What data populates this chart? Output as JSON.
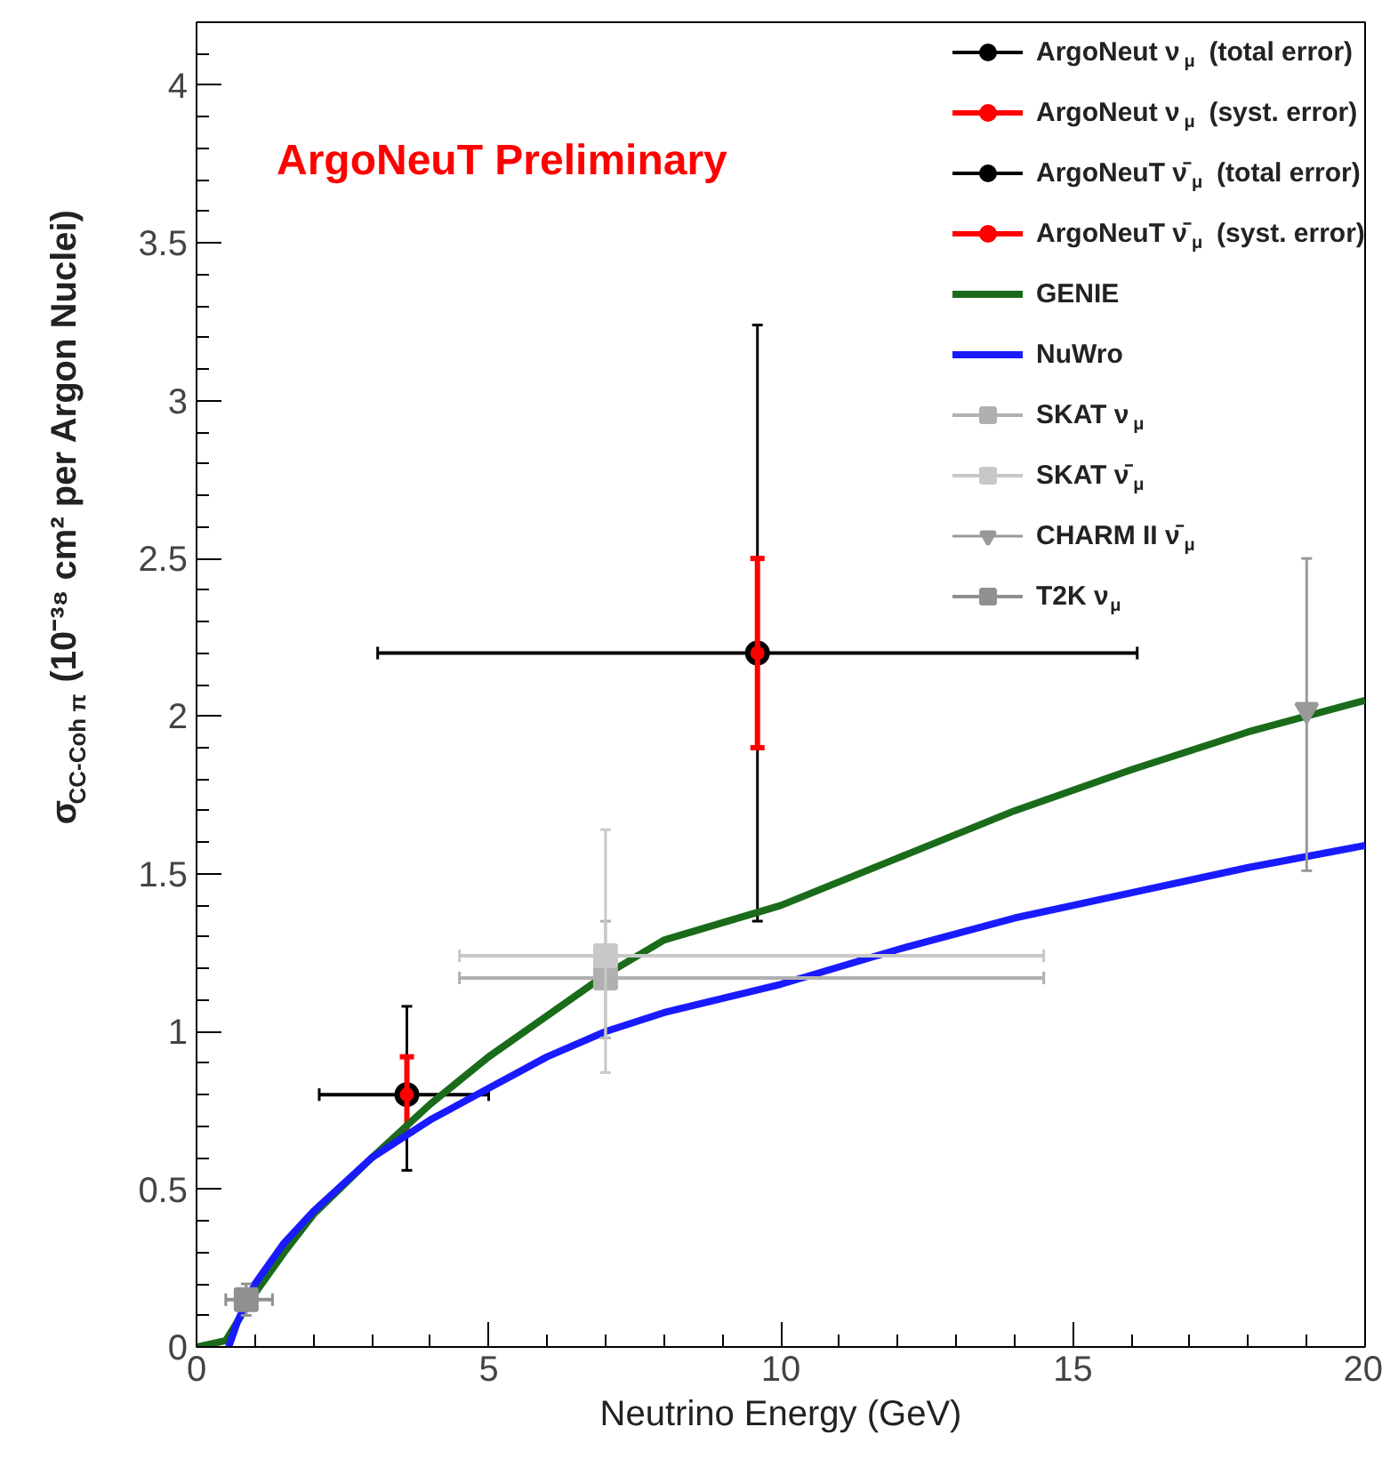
{
  "chart_data": {
    "type": "scatter",
    "xlabel": "Neutrino Energy (GeV)",
    "ylabel": "σ$_{CC-Coh π}$ (10⁻³⁸ cm² per Argon Nuclei)",
    "xlim": [
      0,
      20
    ],
    "ylim": [
      0,
      4.2
    ],
    "xticks": [
      0,
      5,
      10,
      15,
      20
    ],
    "yticks": [
      0,
      0.5,
      1,
      1.5,
      2,
      2.5,
      3,
      3.5,
      4
    ],
    "grid": false,
    "legend": "top right",
    "annotations": [
      "ArgoNeuT Preliminary"
    ],
    "series": [
      {
        "name": "ArgoNeut ν$_{μ}$ (total error)",
        "marker": "circle",
        "color": "#000000",
        "x": [
          9.6
        ],
        "values": [
          2.2
        ],
        "errors": [
          [
            1.35,
            3.24
          ]
        ],
        "xerrors": [
          [
            3.1,
            16.1
          ]
        ]
      },
      {
        "name": "ArgoNeut ν$_{μ}$ (syst. error)",
        "marker": "circle",
        "color": "#ff0000",
        "x": [
          9.6
        ],
        "values": [
          2.2
        ],
        "errors": [
          [
            1.9,
            2.5
          ]
        ]
      },
      {
        "name": "ArgoNeuT ν̄$_{μ}$ (total error)",
        "marker": "circle",
        "color": "#000000",
        "x": [
          3.6
        ],
        "values": [
          0.8
        ],
        "errors": [
          [
            0.56,
            1.08
          ]
        ],
        "xerrors": [
          [
            2.1,
            5.0
          ]
        ]
      },
      {
        "name": "ArgoNeuT ν̄$_{μ}$ (syst. error)",
        "marker": "circle",
        "color": "#ff0000",
        "x": [
          3.6
        ],
        "values": [
          0.8
        ],
        "errors": [
          [
            0.68,
            0.92
          ]
        ]
      },
      {
        "name": "GENIE",
        "type": "line",
        "color": "#1a6b1a",
        "x": [
          0,
          0.5,
          0.7,
          1,
          1.5,
          2,
          3,
          4,
          5,
          6,
          7,
          8,
          10,
          12,
          14,
          16,
          18,
          20
        ],
        "values": [
          0,
          0.02,
          0.08,
          0.17,
          0.3,
          0.42,
          0.6,
          0.77,
          0.92,
          1.05,
          1.18,
          1.29,
          1.4,
          1.55,
          1.7,
          1.83,
          1.95,
          2.05
        ]
      },
      {
        "name": "NuWro",
        "type": "line",
        "color": "#1a1aff",
        "x": [
          0.55,
          0.7,
          1,
          1.5,
          2,
          3,
          4,
          5,
          6,
          7,
          8,
          10,
          12,
          14,
          16,
          18,
          20
        ],
        "values": [
          0,
          0.08,
          0.2,
          0.33,
          0.43,
          0.6,
          0.72,
          0.82,
          0.92,
          1.0,
          1.06,
          1.15,
          1.26,
          1.36,
          1.44,
          1.52,
          1.59
        ]
      },
      {
        "name": "SKAT ν$_{μ}$",
        "marker": "square",
        "color": "#b0b0b0",
        "x": [
          7
        ],
        "values": [
          1.17
        ],
        "errors": [
          [
            0.98,
            1.35
          ]
        ],
        "xerrors": [
          [
            4.5,
            14.5
          ]
        ]
      },
      {
        "name": "SKAT ν̄$_{μ}$",
        "marker": "square",
        "color": "#c8c8c8",
        "x": [
          7
        ],
        "values": [
          1.24
        ],
        "errors": [
          [
            0.87,
            1.64
          ]
        ],
        "xerrors": [
          [
            4.5,
            14.5
          ]
        ]
      },
      {
        "name": "CHARM II ν̄$_{μ}$",
        "marker": "triangle",
        "color": "#999999",
        "x": [
          19
        ],
        "values": [
          2.02
        ],
        "errors": [
          [
            1.51,
            2.5
          ]
        ]
      },
      {
        "name": "T2K ν$_{μ}$",
        "marker": "square",
        "color": "#909090",
        "x": [
          0.85
        ],
        "values": [
          0.15
        ],
        "errors": [
          [
            0.1,
            0.2
          ]
        ],
        "xerrors": [
          [
            0.5,
            1.3
          ]
        ]
      }
    ]
  }
}
